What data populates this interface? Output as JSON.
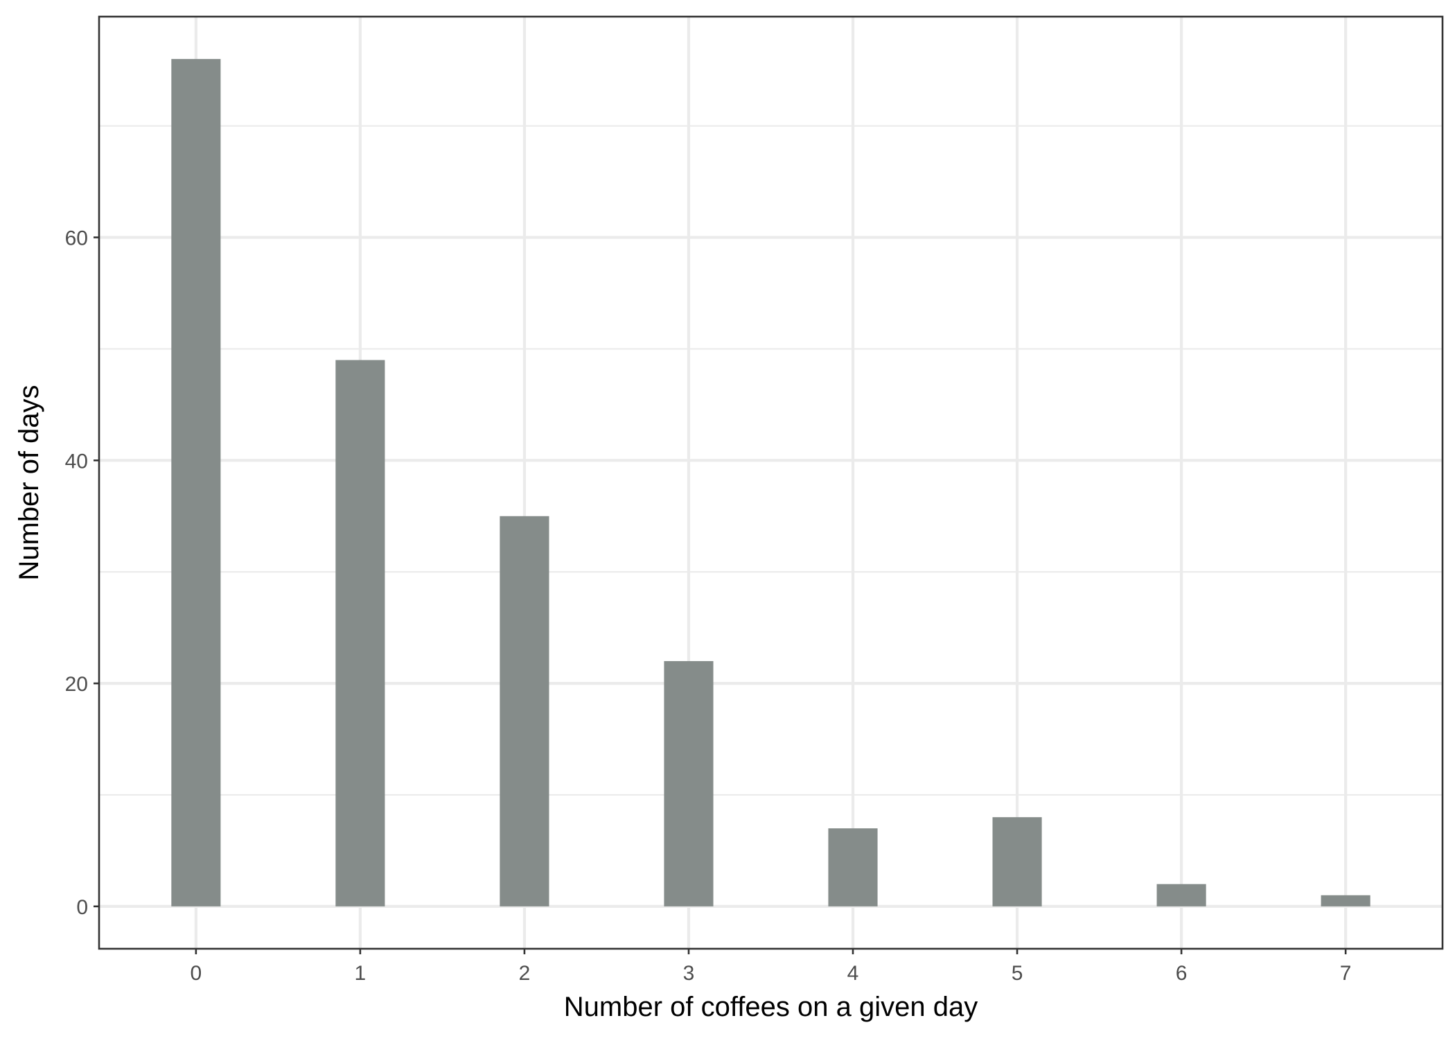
{
  "chart_data": {
    "type": "bar",
    "title": "",
    "xlabel": "Number of coffees on a given day",
    "ylabel": "Number of days",
    "categories": [
      "0",
      "1",
      "2",
      "3",
      "4",
      "5",
      "6",
      "7"
    ],
    "x": [
      0,
      1,
      2,
      3,
      4,
      5,
      6,
      7
    ],
    "values": [
      76,
      49,
      35,
      22,
      7,
      8,
      2,
      1
    ],
    "xlim": [
      -0.59,
      7.59
    ],
    "ylim": [
      -3.8,
      79.8
    ],
    "x_ticks": [
      0,
      1,
      2,
      3,
      4,
      5,
      6,
      7
    ],
    "y_ticks": [
      0,
      20,
      40,
      60
    ],
    "y_tick_labels": [
      "0",
      "20",
      "40",
      "60"
    ],
    "y_minor_ticks": [
      10,
      30,
      50,
      70
    ],
    "bar_width": 0.3,
    "grid": true,
    "legend": "none",
    "colors": {
      "bar": "#858c8a",
      "grid": "#ebebeb",
      "border": "#333333",
      "tick_text": "#4d4d4d",
      "axis_title": "#000000",
      "background": "#ffffff"
    }
  }
}
